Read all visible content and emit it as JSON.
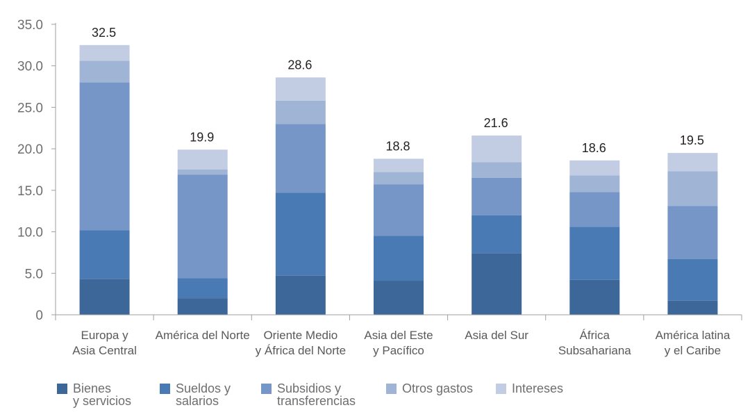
{
  "chart_data": {
    "type": "bar",
    "stacked": true,
    "categories": [
      [
        "Europa y",
        "Asia Central"
      ],
      [
        "América del Norte"
      ],
      [
        "Oriente Medio",
        "y África del Norte"
      ],
      [
        "Asia del Este",
        "y Pacífico"
      ],
      [
        "Asia del Sur"
      ],
      [
        "África",
        "Subsahariana"
      ],
      [
        "América latina",
        "y el Caribe"
      ]
    ],
    "series": [
      {
        "name": [
          "Bienes",
          "y servicios"
        ],
        "color": "#3d6699",
        "values": [
          4.3,
          2.0,
          4.7,
          4.1,
          7.4,
          4.2,
          1.7
        ]
      },
      {
        "name": [
          "Sueldos y",
          "salarios"
        ],
        "color": "#4a7ab4",
        "values": [
          5.9,
          2.4,
          10.0,
          5.4,
          4.6,
          6.4,
          5.0
        ]
      },
      {
        "name": [
          "Subsidios y",
          "transferencias"
        ],
        "color": "#7596c6",
        "values": [
          17.8,
          12.5,
          8.3,
          6.2,
          4.5,
          4.2,
          6.4
        ]
      },
      {
        "name": [
          "Otros gastos"
        ],
        "color": "#a0b4d6",
        "values": [
          2.6,
          0.6,
          2.8,
          1.5,
          1.9,
          2.0,
          4.2
        ]
      },
      {
        "name": [
          "Intereses"
        ],
        "color": "#c2cde3",
        "values": [
          1.9,
          2.4,
          2.8,
          1.6,
          3.2,
          1.8,
          2.2
        ]
      }
    ],
    "totals": [
      "32.5",
      "19.9",
      "28.6",
      "18.8",
      "21.6",
      "18.6",
      "19.5"
    ],
    "yticks": [
      "0",
      "5.0",
      "10.0",
      "15.0",
      "20.0",
      "25.0",
      "30.0",
      "35.0"
    ],
    "ylim": [
      0,
      35
    ],
    "legend_position": "bottom",
    "grid": false
  }
}
